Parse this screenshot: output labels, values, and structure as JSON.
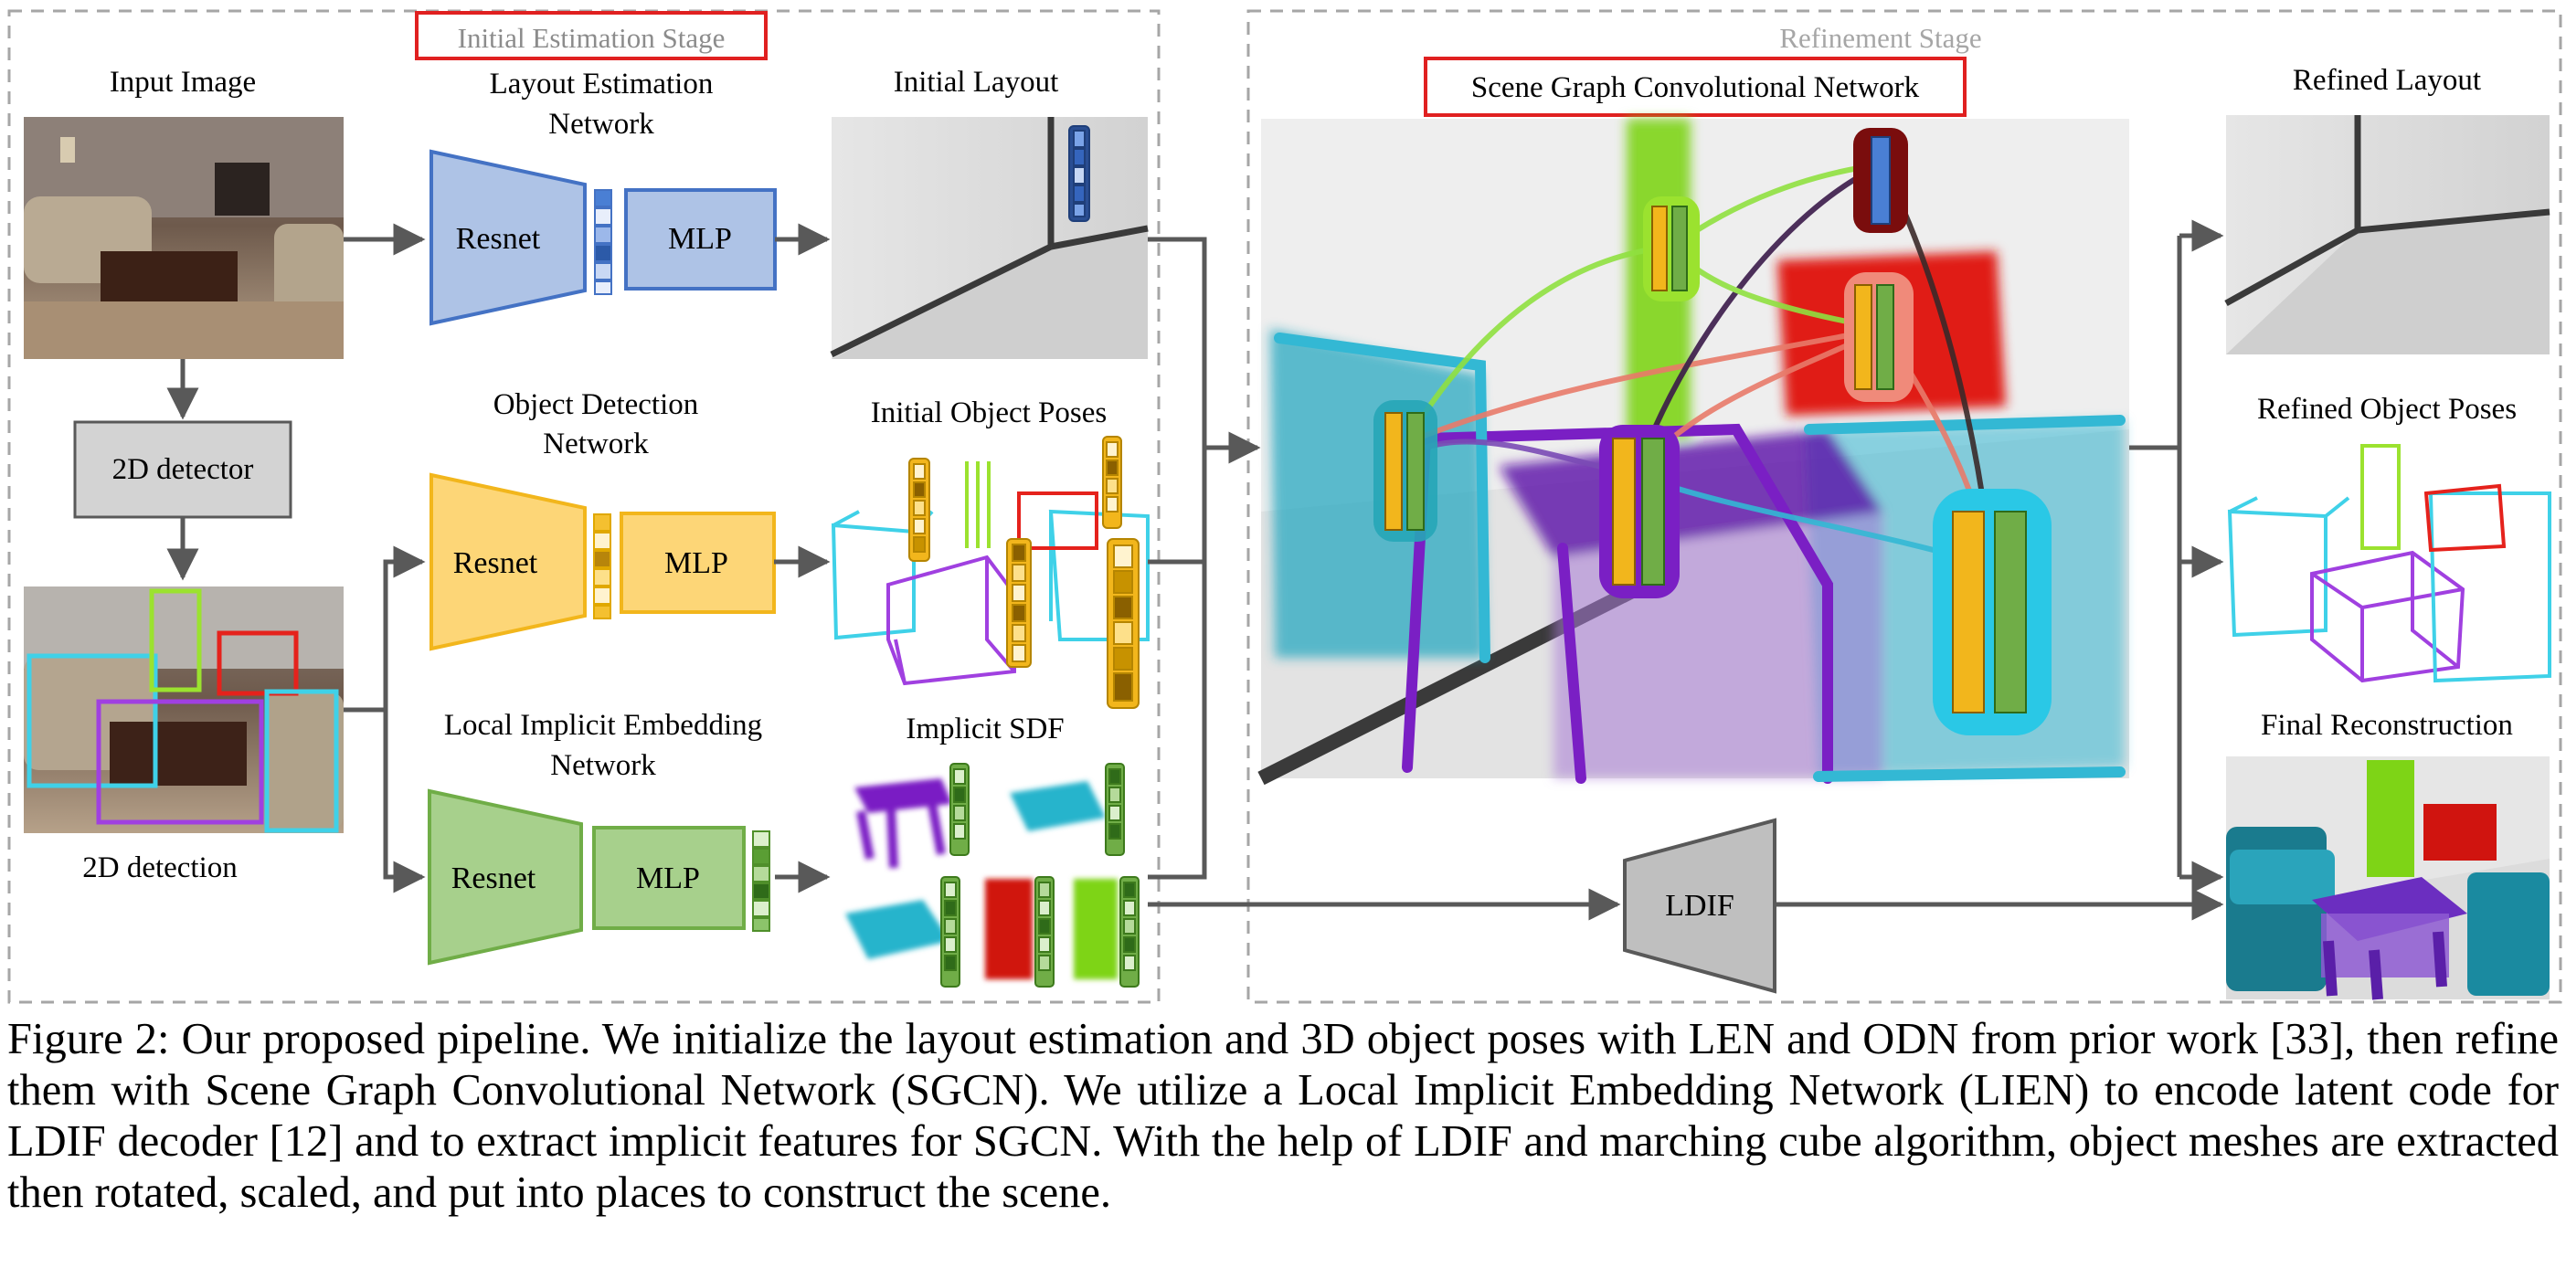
{
  "stages": {
    "initial": "Initial Estimation Stage",
    "refinement": "Refinement Stage"
  },
  "labels": {
    "input_image": "Input Image",
    "detector": "2D detector",
    "detection": "2D detection",
    "len_line1": "Layout Estimation",
    "len_line2": "Network",
    "odn_line1": "Object Detection",
    "odn_line2": "Network",
    "lien_line1": "Local Implicit Embedding",
    "lien_line2": "Network",
    "resnet": "Resnet",
    "mlp": "MLP",
    "initial_layout": "Initial Layout",
    "initial_poses": "Initial Object Poses",
    "implicit_sdf": "Implicit SDF",
    "sgcn": "Scene Graph Convolutional Network",
    "refined_layout": "Refined Layout",
    "refined_poses": "Refined Object Poses",
    "final_recon": "Final Reconstruction",
    "ldif": "LDIF"
  },
  "caption": "Figure 2: Our proposed pipeline. We initialize the layout estimation and 3D object poses with LEN and ODN from prior work [33], then refine them with Scene Graph Convolutional Network (SGCN). We utilize a Local Implicit Embedding Network (LIEN) to encode latent code for LDIF decoder [12] and to extract implicit features for SGCN. With the help of LDIF and marching cube algorithm, object meshes are extracted then rotated, scaled, and put into places to construct the scene.",
  "colors": {
    "len": "#aec3e6",
    "len_stroke": "#4472c4",
    "odn": "#fdd677",
    "odn_stroke": "#f2b61c",
    "lien": "#a7d08c",
    "lien_stroke": "#70ad47",
    "stage_box": "#d9262a",
    "arrow": "#595959",
    "purple": "#8a2be2",
    "cyan": "#3fd1e8",
    "red": "#e5221c",
    "green": "#8ed81e"
  }
}
